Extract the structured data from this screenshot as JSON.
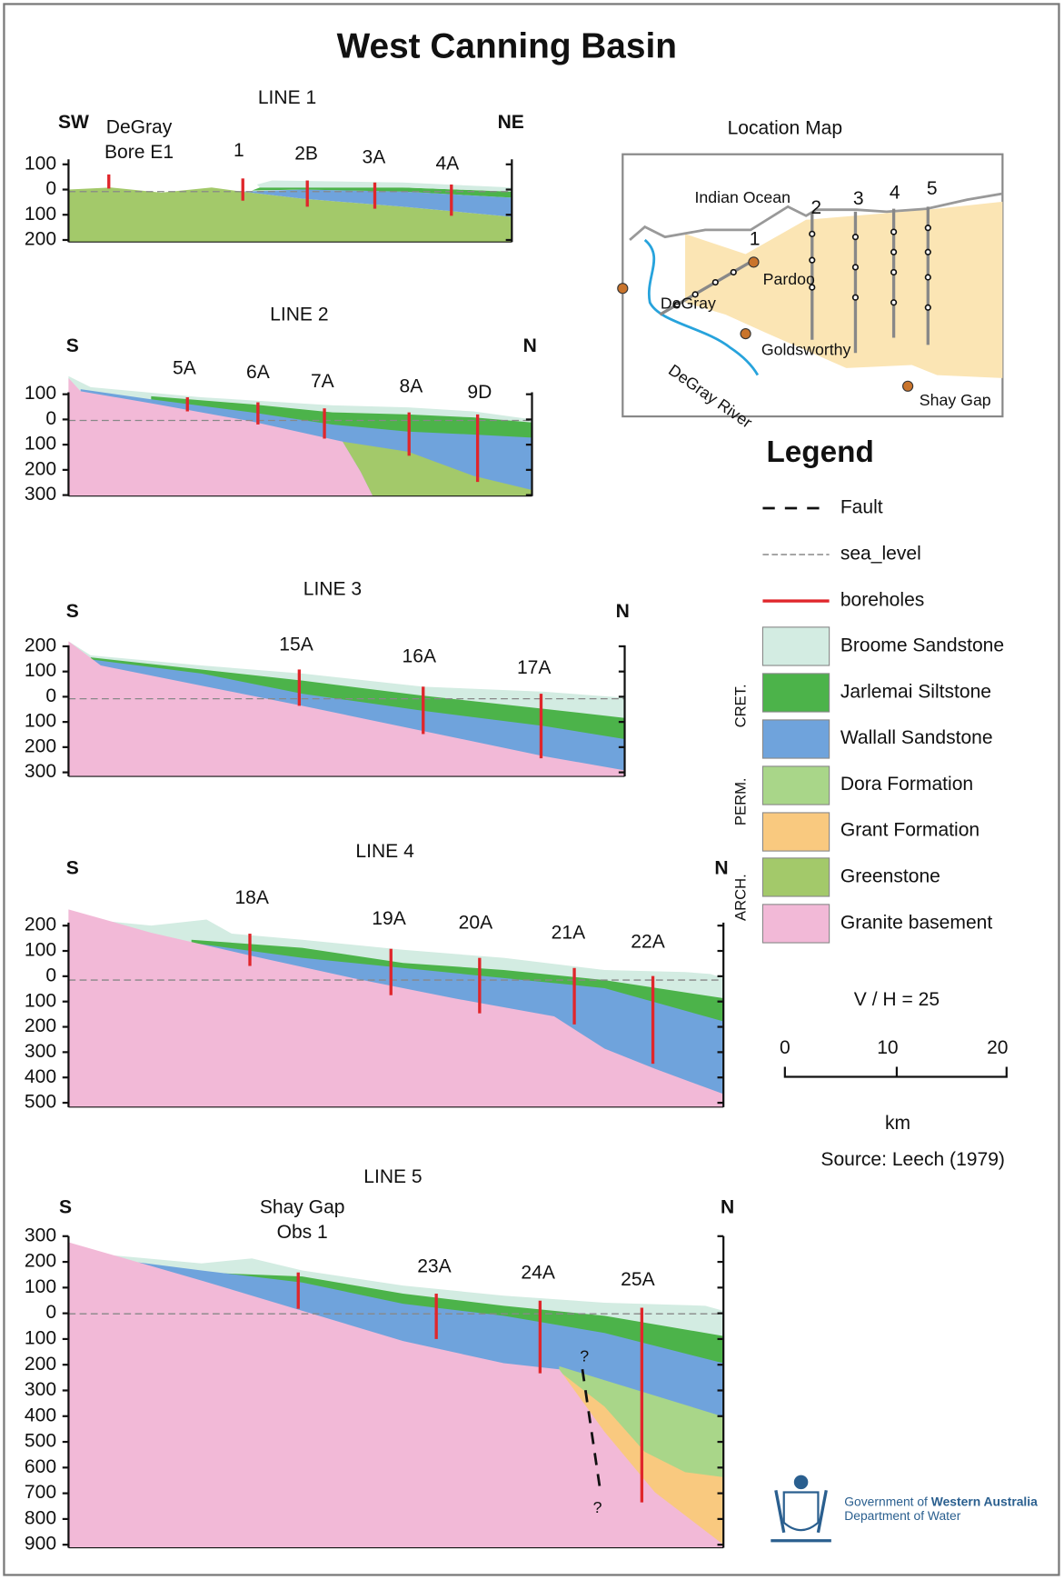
{
  "title": "West Canning Basin",
  "sections": [
    {
      "name": "LINE 1",
      "left": "SW",
      "right": "NE",
      "depths": [
        100,
        0,
        100,
        200
      ],
      "boreholes": [
        "1",
        "2B",
        "3A",
        "4A"
      ],
      "bore_named": [
        "DeGray",
        "Bore E1"
      ]
    },
    {
      "name": "LINE 2",
      "left": "S",
      "right": "N",
      "depths": [
        100,
        0,
        100,
        200,
        300
      ],
      "boreholes": [
        "5A",
        "6A",
        "7A",
        "8A",
        "9D"
      ]
    },
    {
      "name": "LINE 3",
      "left": "S",
      "right": "N",
      "depths": [
        200,
        100,
        0,
        100,
        200,
        300
      ],
      "boreholes": [
        "15A",
        "16A",
        "17A"
      ]
    },
    {
      "name": "LINE 4",
      "left": "S",
      "right": "N",
      "depths": [
        200,
        100,
        0,
        100,
        200,
        300,
        400,
        500
      ],
      "boreholes": [
        "18A",
        "19A",
        "20A",
        "21A",
        "22A"
      ]
    },
    {
      "name": "LINE 5",
      "left": "S",
      "right": "N",
      "depths": [
        300,
        200,
        100,
        0,
        100,
        200,
        300,
        400,
        500,
        600,
        700,
        800,
        900
      ],
      "boreholes": [
        "23A",
        "24A",
        "25A"
      ],
      "bore_named": [
        "Shay Gap",
        "Obs 1"
      ],
      "fault_marks": [
        "?",
        "?"
      ]
    }
  ],
  "location_map": {
    "title": "Location Map",
    "ocean": "Indian Ocean",
    "lines": [
      "1",
      "2",
      "3",
      "4",
      "5"
    ],
    "places": [
      "Pardoo",
      "DeGray",
      "Goldsworthy",
      "Shay Gap"
    ],
    "river": "DeGray River"
  },
  "legend": {
    "title": "Legend",
    "lines": [
      "Fault",
      "sea_level",
      "boreholes"
    ],
    "units": [
      "Broome Sandstone",
      "Jarlemai Siltstone",
      "Wallall Sandstone",
      "Dora Formation",
      "Grant Formation",
      "Greenstone",
      "Granite basement"
    ],
    "groups": [
      "CRET.",
      "PERM.",
      "ARCH."
    ]
  },
  "scale": {
    "ratio": "V / H = 25",
    "ticks": [
      0,
      10,
      20
    ],
    "unit": "km"
  },
  "source": "Source: Leech (1979)",
  "logo": {
    "gov": "Government of",
    "state": "Western Australia",
    "dept": "Department of Water"
  }
}
